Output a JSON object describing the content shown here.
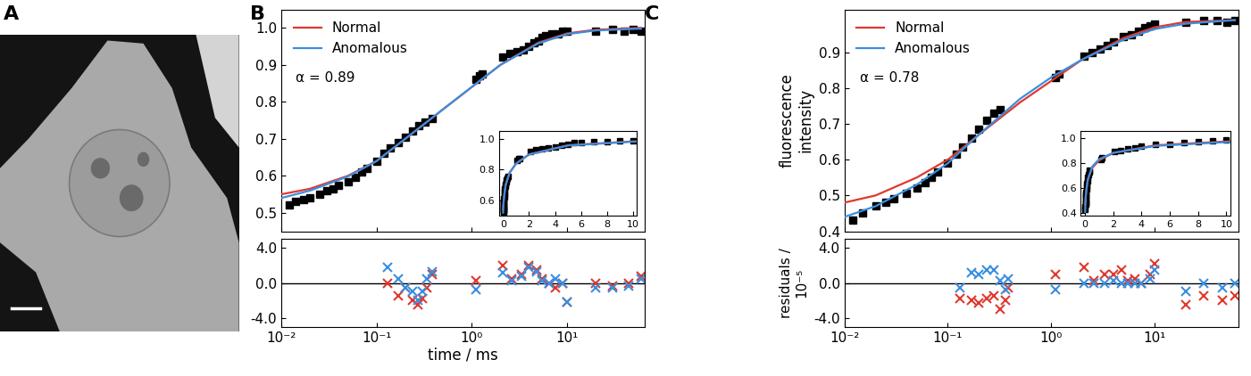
{
  "image_panel": {
    "label": "A"
  },
  "chart_data": [
    {
      "panel": "B",
      "type": "line",
      "log": "x",
      "legend": "upper left",
      "tick_labels": "y",
      "annotation": "α = 0.89",
      "xlim": [
        0.01,
        65
      ],
      "xticks": [
        {
          "value": 0.01,
          "label": "10⁻²"
        },
        {
          "value": 0.1,
          "label": "10⁻¹"
        },
        {
          "value": 1,
          "label": "10⁰"
        },
        {
          "value": 10,
          "label": "10¹"
        }
      ],
      "ylim": [
        0.45,
        1.05
      ],
      "yticks": [
        0.5,
        0.6,
        0.7,
        0.8,
        0.9,
        1.0
      ],
      "series": [
        {
          "type": "scatter",
          "color": "#000000",
          "marker": "square",
          "x": [
            0.012,
            0.014,
            0.017,
            0.02,
            0.025,
            0.03,
            0.035,
            0.04,
            0.05,
            0.06,
            0.07,
            0.08,
            0.1,
            0.12,
            0.14,
            0.17,
            0.2,
            0.24,
            0.28,
            0.32,
            0.38,
            1.1,
            1.2,
            1.3,
            2.1,
            2.5,
            3.0,
            3.5,
            4.0,
            4.5,
            5.0,
            5.5,
            6.0,
            7.0,
            8.0,
            9.0,
            10.0,
            20.0,
            30.0,
            40.0,
            50.0,
            60.0
          ],
          "values": [
            0.52,
            0.53,
            0.535,
            0.54,
            0.55,
            0.56,
            0.565,
            0.575,
            0.585,
            0.595,
            0.61,
            0.62,
            0.64,
            0.66,
            0.675,
            0.69,
            0.705,
            0.72,
            0.735,
            0.745,
            0.755,
            0.86,
            0.87,
            0.875,
            0.92,
            0.93,
            0.935,
            0.94,
            0.95,
            0.96,
            0.965,
            0.975,
            0.98,
            0.985,
            0.985,
            0.99,
            0.99,
            0.99,
            0.995,
            0.99,
            0.995,
            0.99
          ]
        },
        {
          "name": "Normal",
          "type": "line",
          "color": "#e0382e",
          "x": [
            0.003,
            0.01,
            0.02,
            0.05,
            0.1,
            0.2,
            0.5,
            1,
            2,
            5,
            10,
            20,
            60
          ],
          "values": [
            0.54,
            0.55,
            0.565,
            0.6,
            0.64,
            0.7,
            0.78,
            0.84,
            0.9,
            0.96,
            0.985,
            0.995,
            1.0
          ]
        },
        {
          "name": "Anomalous",
          "type": "line",
          "color": "#3a8fe0",
          "x": [
            0.003,
            0.01,
            0.02,
            0.05,
            0.1,
            0.2,
            0.5,
            1,
            2,
            5,
            10,
            20,
            60
          ],
          "values": [
            0.52,
            0.54,
            0.56,
            0.598,
            0.64,
            0.7,
            0.78,
            0.84,
            0.9,
            0.958,
            0.983,
            0.993,
            0.998
          ]
        }
      ],
      "inset": {
        "xlim": [
          -0.3,
          10.3
        ],
        "xticks": [
          0,
          2,
          4,
          6,
          8,
          10
        ],
        "ylim": [
          0.5,
          1.05
        ],
        "yticks": [
          0.6,
          0.8,
          1.0
        ]
      },
      "residuals": {
        "xlabel": "time / ms",
        "ylim": [
          -5,
          5
        ],
        "yticks": [
          {
            "value": 4,
            "label": "4.0"
          },
          {
            "value": 0,
            "label": "0.0"
          },
          {
            "value": -4,
            "label": "-4.0"
          }
        ],
        "x": [
          0.13,
          0.17,
          0.2,
          0.24,
          0.27,
          0.3,
          0.34,
          0.38,
          1.1,
          2.1,
          2.6,
          3.3,
          4.0,
          4.8,
          5.5,
          6.5,
          7.5,
          9,
          10,
          20,
          30,
          45,
          60
        ],
        "series": [
          {
            "color": "#e0382e",
            "marker": "x",
            "values": [
              0.0,
              -1.5,
              -0.5,
              -2.0,
              -2.5,
              -1.8,
              -0.5,
              1.0,
              0.3,
              2.0,
              0.5,
              1.0,
              2.0,
              1.5,
              0.5,
              0.0,
              -0.5,
              0.0,
              -2.2,
              0.0,
              -0.3,
              0.0,
              0.8
            ]
          },
          {
            "color": "#3a8fe0",
            "marker": "x",
            "values": [
              1.8,
              0.5,
              -0.5,
              -1.0,
              -2.0,
              -1.0,
              0.5,
              1.3,
              -0.8,
              1.2,
              0.3,
              0.8,
              1.8,
              1.3,
              0.3,
              0.0,
              0.5,
              0.0,
              -2.2,
              -0.5,
              -0.5,
              -0.3,
              0.5
            ]
          }
        ]
      }
    },
    {
      "panel": "C",
      "type": "line",
      "log": "x",
      "legend": "upper left",
      "tick_labels": "y",
      "ylabel": "fluorescence\nintensity",
      "annotation": "α = 0.78",
      "xlim": [
        0.01,
        65
      ],
      "xticks": [
        {
          "value": 0.01,
          "label": "10⁻²"
        },
        {
          "value": 0.1,
          "label": "10⁻¹"
        },
        {
          "value": 1,
          "label": "10⁰"
        },
        {
          "value": 10,
          "label": "10¹"
        }
      ],
      "ylim": [
        0.4,
        1.02
      ],
      "yticks": [
        0.4,
        0.5,
        0.6,
        0.7,
        0.8,
        0.9
      ],
      "series": [
        {
          "type": "scatter",
          "color": "#000000",
          "marker": "square",
          "x": [
            0.012,
            0.015,
            0.02,
            0.025,
            0.03,
            0.04,
            0.05,
            0.06,
            0.07,
            0.08,
            0.1,
            0.12,
            0.14,
            0.17,
            0.2,
            0.24,
            0.28,
            0.32,
            1.1,
            1.2,
            2.1,
            2.5,
            3.0,
            3.5,
            4.0,
            5.0,
            6.0,
            7.0,
            8.0,
            9.0,
            10.0,
            20.0,
            30.0,
            40.0,
            50.0,
            60.0
          ],
          "values": [
            0.43,
            0.45,
            0.47,
            0.48,
            0.49,
            0.505,
            0.52,
            0.535,
            0.55,
            0.565,
            0.59,
            0.615,
            0.635,
            0.66,
            0.685,
            0.71,
            0.73,
            0.74,
            0.83,
            0.84,
            0.89,
            0.9,
            0.91,
            0.92,
            0.93,
            0.945,
            0.95,
            0.96,
            0.97,
            0.975,
            0.98,
            0.985,
            0.99,
            0.99,
            0.985,
            0.99
          ]
        },
        {
          "name": "Normal",
          "type": "line",
          "color": "#e0382e",
          "x": [
            0.003,
            0.01,
            0.02,
            0.05,
            0.1,
            0.2,
            0.5,
            1,
            2,
            5,
            10,
            20,
            60
          ],
          "values": [
            0.47,
            0.48,
            0.5,
            0.55,
            0.6,
            0.67,
            0.76,
            0.82,
            0.88,
            0.94,
            0.97,
            0.985,
            0.99
          ]
        },
        {
          "name": "Anomalous",
          "type": "line",
          "color": "#3a8fe0",
          "x": [
            0.003,
            0.01,
            0.02,
            0.05,
            0.1,
            0.2,
            0.5,
            1,
            2,
            5,
            10,
            20,
            60
          ],
          "values": [
            0.41,
            0.44,
            0.47,
            0.53,
            0.59,
            0.67,
            0.77,
            0.83,
            0.88,
            0.935,
            0.965,
            0.98,
            0.99
          ]
        }
      ],
      "inset": {
        "xlim": [
          -0.3,
          10.3
        ],
        "xticks": [
          0,
          2,
          4,
          6,
          8,
          10
        ],
        "ylim": [
          0.38,
          1.05
        ],
        "yticks": [
          0.4,
          0.6,
          0.8,
          1.0
        ]
      },
      "residuals": {
        "ylabel": "residuals /\n10⁻⁵",
        "ylim": [
          -5,
          5
        ],
        "yticks": [
          {
            "value": 4,
            "label": "4.0"
          },
          {
            "value": 0,
            "label": "0.0"
          },
          {
            "value": -4,
            "label": "-4.0"
          }
        ],
        "x": [
          0.13,
          0.17,
          0.2,
          0.24,
          0.28,
          0.32,
          0.36,
          0.38,
          1.1,
          2.1,
          2.6,
          3.3,
          4.0,
          4.8,
          5.5,
          6.5,
          7.5,
          9,
          10,
          20,
          30,
          45,
          60
        ],
        "series": [
          {
            "color": "#e0382e",
            "marker": "x",
            "values": [
              -1.8,
              -2.0,
              -2.3,
              -1.8,
              -1.5,
              -3.0,
              -2.0,
              -0.5,
              1.0,
              1.8,
              0.3,
              1.0,
              1.0,
              1.5,
              0.3,
              0.5,
              0.0,
              1.0,
              2.2,
              -2.5,
              -1.5,
              -2.0,
              -1.5
            ]
          },
          {
            "color": "#3a8fe0",
            "marker": "x",
            "values": [
              -0.5,
              1.2,
              1.0,
              1.5,
              1.5,
              0.3,
              -0.8,
              0.5,
              -0.8,
              0.0,
              0.0,
              0.0,
              0.3,
              0.0,
              0.0,
              0.0,
              0.0,
              0.5,
              1.5,
              -1.0,
              0.0,
              -0.5,
              0.0
            ]
          }
        ]
      }
    }
  ]
}
